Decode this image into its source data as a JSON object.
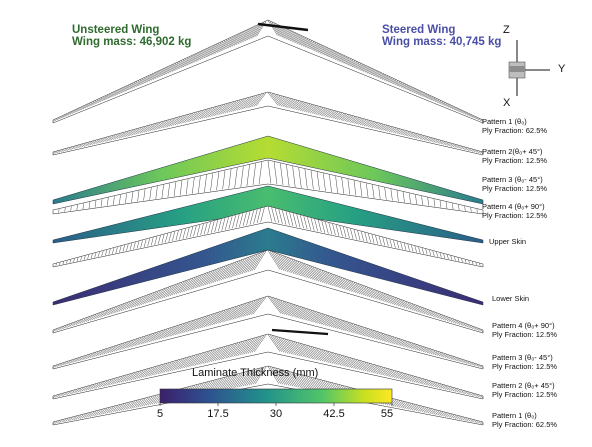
{
  "headers": {
    "unsteered": {
      "title": "Unsteered Wing",
      "mass": "Wing mass: 46,902 kg",
      "color": "#2f6b2f"
    },
    "steered": {
      "title": "Steered Wing",
      "mass": "Wing mass: 40,745 kg",
      "color": "#4a4fa6"
    }
  },
  "axes_triad": {
    "z": "Z",
    "y": "Y",
    "x": "X"
  },
  "labels_top": [
    {
      "line1": "Pattern 1 (θ₀)",
      "line2": "Ply Fraction: 62.5%"
    },
    {
      "line1": "Pattern 2(θ₀+ 45°)",
      "line2": "Ply Fraction: 12.5%"
    },
    {
      "line1": "Pattern 3 (θ₀- 45°)",
      "line2": "Ply Fraction: 12.5%"
    },
    {
      "line1": "Pattern 4  (θ₀+ 90°)",
      "line2": "Ply Fraction: 12.5%"
    }
  ],
  "labels_skin": {
    "upper": "Upper Skin",
    "lower": "Lower Skin"
  },
  "labels_bottom": [
    {
      "line1": "Pattern 4 (θ₀+ 90°)",
      "line2": "Ply Fraction: 12.5%"
    },
    {
      "line1": "Pattern 3 (θ₀- 45°)",
      "line2": "Ply Fraction: 12.5%"
    },
    {
      "line1": "Pattern 2 (θ₀+ 45°)",
      "line2": "Ply Fraction: 12.5%"
    },
    {
      "line1": "Pattern 1 (θ₀)",
      "line2": "Ply Fraction: 62.5%"
    }
  ],
  "colorbar": {
    "title": "Laminate Thickness (mm)",
    "ticks": [
      "5",
      "17.5",
      "30",
      "42.5",
      "55"
    ],
    "min": 5,
    "max": 55,
    "colors": [
      "#3b1f6b",
      "#2f4f8f",
      "#21918c",
      "#52c569",
      "#c9e020",
      "#fde725"
    ]
  }
}
